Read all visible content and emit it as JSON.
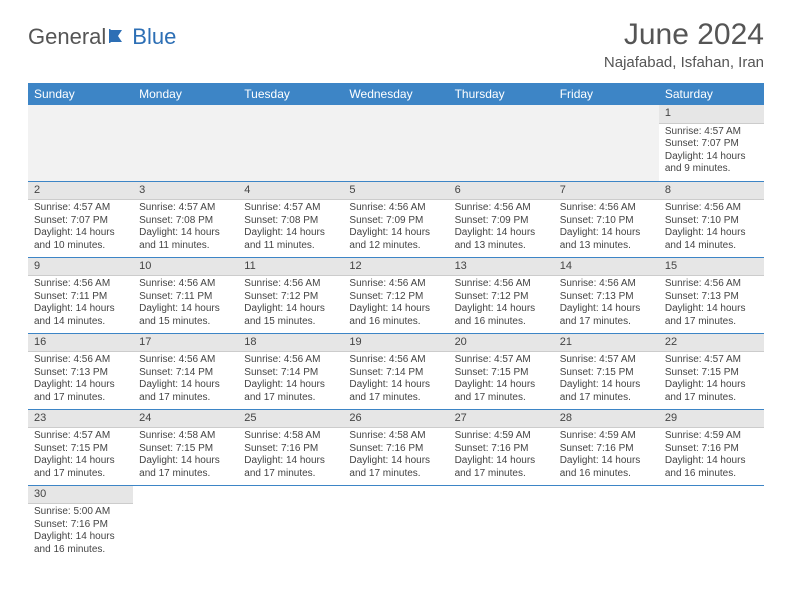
{
  "brand": {
    "part1": "General",
    "part2": "Blue"
  },
  "header": {
    "title": "June 2024",
    "location": "Najafabad, Isfahan, Iran"
  },
  "colors": {
    "header_bg": "#3d85c6",
    "header_fg": "#ffffff",
    "daynum_bg": "#e6e6e6",
    "row_divider": "#3d85c6",
    "text": "#444444",
    "brand_blue": "#2d6fb5",
    "brand_gray": "#555555"
  },
  "weekdays": [
    "Sunday",
    "Monday",
    "Tuesday",
    "Wednesday",
    "Thursday",
    "Friday",
    "Saturday"
  ],
  "layout": {
    "type": "table",
    "columns": 7,
    "rows": 6,
    "cell_fontsize_pt": 7.5,
    "header_fontsize_pt": 9,
    "title_fontsize_pt": 22,
    "location_fontsize_pt": 11
  },
  "days": {
    "1": {
      "sunrise": "Sunrise: 4:57 AM",
      "sunset": "Sunset: 7:07 PM",
      "daylight1": "Daylight: 14 hours",
      "daylight2": "and 9 minutes."
    },
    "2": {
      "sunrise": "Sunrise: 4:57 AM",
      "sunset": "Sunset: 7:07 PM",
      "daylight1": "Daylight: 14 hours",
      "daylight2": "and 10 minutes."
    },
    "3": {
      "sunrise": "Sunrise: 4:57 AM",
      "sunset": "Sunset: 7:08 PM",
      "daylight1": "Daylight: 14 hours",
      "daylight2": "and 11 minutes."
    },
    "4": {
      "sunrise": "Sunrise: 4:57 AM",
      "sunset": "Sunset: 7:08 PM",
      "daylight1": "Daylight: 14 hours",
      "daylight2": "and 11 minutes."
    },
    "5": {
      "sunrise": "Sunrise: 4:56 AM",
      "sunset": "Sunset: 7:09 PM",
      "daylight1": "Daylight: 14 hours",
      "daylight2": "and 12 minutes."
    },
    "6": {
      "sunrise": "Sunrise: 4:56 AM",
      "sunset": "Sunset: 7:09 PM",
      "daylight1": "Daylight: 14 hours",
      "daylight2": "and 13 minutes."
    },
    "7": {
      "sunrise": "Sunrise: 4:56 AM",
      "sunset": "Sunset: 7:10 PM",
      "daylight1": "Daylight: 14 hours",
      "daylight2": "and 13 minutes."
    },
    "8": {
      "sunrise": "Sunrise: 4:56 AM",
      "sunset": "Sunset: 7:10 PM",
      "daylight1": "Daylight: 14 hours",
      "daylight2": "and 14 minutes."
    },
    "9": {
      "sunrise": "Sunrise: 4:56 AM",
      "sunset": "Sunset: 7:11 PM",
      "daylight1": "Daylight: 14 hours",
      "daylight2": "and 14 minutes."
    },
    "10": {
      "sunrise": "Sunrise: 4:56 AM",
      "sunset": "Sunset: 7:11 PM",
      "daylight1": "Daylight: 14 hours",
      "daylight2": "and 15 minutes."
    },
    "11": {
      "sunrise": "Sunrise: 4:56 AM",
      "sunset": "Sunset: 7:12 PM",
      "daylight1": "Daylight: 14 hours",
      "daylight2": "and 15 minutes."
    },
    "12": {
      "sunrise": "Sunrise: 4:56 AM",
      "sunset": "Sunset: 7:12 PM",
      "daylight1": "Daylight: 14 hours",
      "daylight2": "and 16 minutes."
    },
    "13": {
      "sunrise": "Sunrise: 4:56 AM",
      "sunset": "Sunset: 7:12 PM",
      "daylight1": "Daylight: 14 hours",
      "daylight2": "and 16 minutes."
    },
    "14": {
      "sunrise": "Sunrise: 4:56 AM",
      "sunset": "Sunset: 7:13 PM",
      "daylight1": "Daylight: 14 hours",
      "daylight2": "and 17 minutes."
    },
    "15": {
      "sunrise": "Sunrise: 4:56 AM",
      "sunset": "Sunset: 7:13 PM",
      "daylight1": "Daylight: 14 hours",
      "daylight2": "and 17 minutes."
    },
    "16": {
      "sunrise": "Sunrise: 4:56 AM",
      "sunset": "Sunset: 7:13 PM",
      "daylight1": "Daylight: 14 hours",
      "daylight2": "and 17 minutes."
    },
    "17": {
      "sunrise": "Sunrise: 4:56 AM",
      "sunset": "Sunset: 7:14 PM",
      "daylight1": "Daylight: 14 hours",
      "daylight2": "and 17 minutes."
    },
    "18": {
      "sunrise": "Sunrise: 4:56 AM",
      "sunset": "Sunset: 7:14 PM",
      "daylight1": "Daylight: 14 hours",
      "daylight2": "and 17 minutes."
    },
    "19": {
      "sunrise": "Sunrise: 4:56 AM",
      "sunset": "Sunset: 7:14 PM",
      "daylight1": "Daylight: 14 hours",
      "daylight2": "and 17 minutes."
    },
    "20": {
      "sunrise": "Sunrise: 4:57 AM",
      "sunset": "Sunset: 7:15 PM",
      "daylight1": "Daylight: 14 hours",
      "daylight2": "and 17 minutes."
    },
    "21": {
      "sunrise": "Sunrise: 4:57 AM",
      "sunset": "Sunset: 7:15 PM",
      "daylight1": "Daylight: 14 hours",
      "daylight2": "and 17 minutes."
    },
    "22": {
      "sunrise": "Sunrise: 4:57 AM",
      "sunset": "Sunset: 7:15 PM",
      "daylight1": "Daylight: 14 hours",
      "daylight2": "and 17 minutes."
    },
    "23": {
      "sunrise": "Sunrise: 4:57 AM",
      "sunset": "Sunset: 7:15 PM",
      "daylight1": "Daylight: 14 hours",
      "daylight2": "and 17 minutes."
    },
    "24": {
      "sunrise": "Sunrise: 4:58 AM",
      "sunset": "Sunset: 7:15 PM",
      "daylight1": "Daylight: 14 hours",
      "daylight2": "and 17 minutes."
    },
    "25": {
      "sunrise": "Sunrise: 4:58 AM",
      "sunset": "Sunset: 7:16 PM",
      "daylight1": "Daylight: 14 hours",
      "daylight2": "and 17 minutes."
    },
    "26": {
      "sunrise": "Sunrise: 4:58 AM",
      "sunset": "Sunset: 7:16 PM",
      "daylight1": "Daylight: 14 hours",
      "daylight2": "and 17 minutes."
    },
    "27": {
      "sunrise": "Sunrise: 4:59 AM",
      "sunset": "Sunset: 7:16 PM",
      "daylight1": "Daylight: 14 hours",
      "daylight2": "and 17 minutes."
    },
    "28": {
      "sunrise": "Sunrise: 4:59 AM",
      "sunset": "Sunset: 7:16 PM",
      "daylight1": "Daylight: 14 hours",
      "daylight2": "and 16 minutes."
    },
    "29": {
      "sunrise": "Sunrise: 4:59 AM",
      "sunset": "Sunset: 7:16 PM",
      "daylight1": "Daylight: 14 hours",
      "daylight2": "and 16 minutes."
    },
    "30": {
      "sunrise": "Sunrise: 5:00 AM",
      "sunset": "Sunset: 7:16 PM",
      "daylight1": "Daylight: 14 hours",
      "daylight2": "and 16 minutes."
    }
  },
  "grid": [
    [
      null,
      null,
      null,
      null,
      null,
      null,
      "1"
    ],
    [
      "2",
      "3",
      "4",
      "5",
      "6",
      "7",
      "8"
    ],
    [
      "9",
      "10",
      "11",
      "12",
      "13",
      "14",
      "15"
    ],
    [
      "16",
      "17",
      "18",
      "19",
      "20",
      "21",
      "22"
    ],
    [
      "23",
      "24",
      "25",
      "26",
      "27",
      "28",
      "29"
    ],
    [
      "30",
      null,
      null,
      null,
      null,
      null,
      null
    ]
  ]
}
